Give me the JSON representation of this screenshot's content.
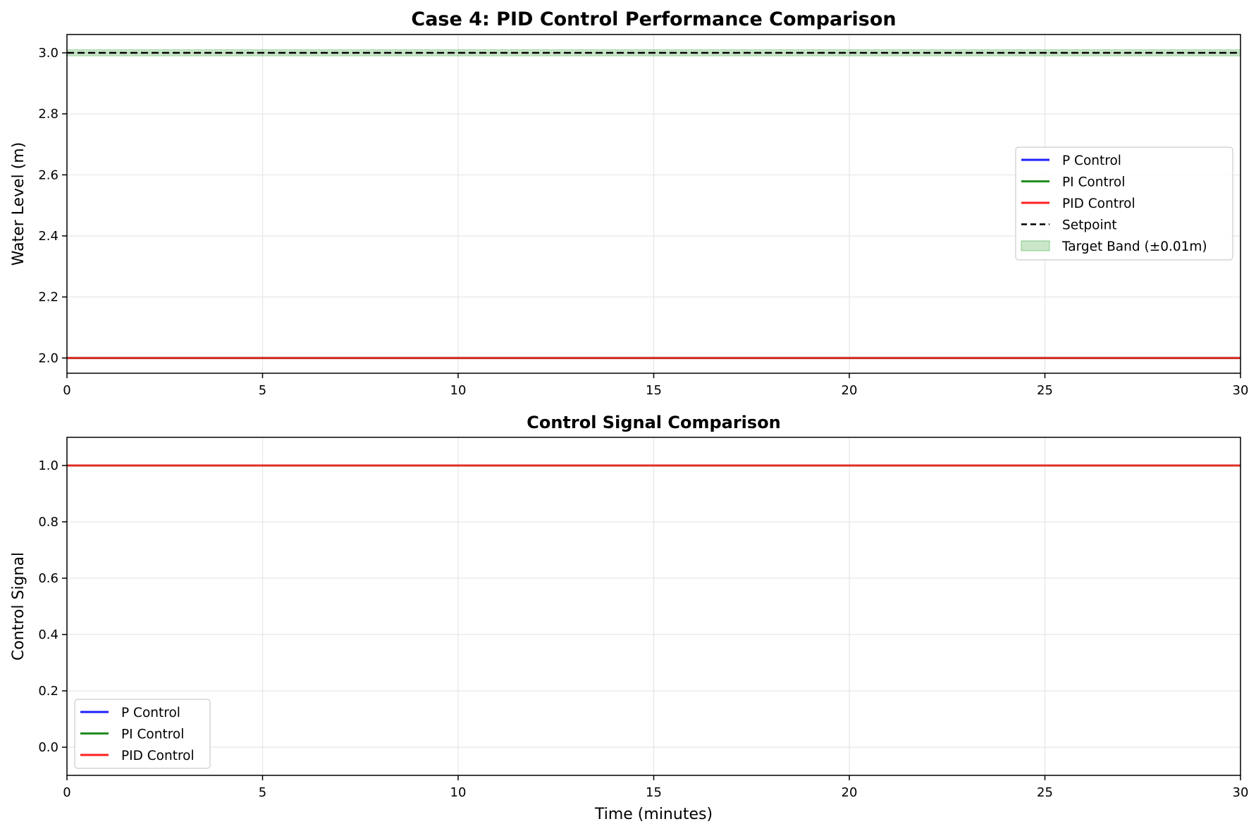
{
  "chart_data": [
    {
      "type": "line",
      "title": "Case 4: PID Control Performance Comparison",
      "xlabel": "",
      "ylabel": "Water Level (m)",
      "xlim": [
        0,
        30
      ],
      "ylim": [
        1.95,
        3.06
      ],
      "xticks": [
        "0",
        "5",
        "10",
        "15",
        "20",
        "25",
        "30"
      ],
      "yticks": [
        "2.0",
        "2.2",
        "2.4",
        "2.6",
        "2.8",
        "3.0"
      ],
      "grid": true,
      "legend_position": "center-right",
      "series": [
        {
          "name": "P Control",
          "color": "#1f1fff",
          "style": "solid",
          "x": [
            0,
            30
          ],
          "values": [
            2.0,
            2.0
          ]
        },
        {
          "name": "PI Control",
          "color": "#228b22",
          "style": "solid",
          "x": [
            0,
            30
          ],
          "values": [
            2.0,
            2.0
          ]
        },
        {
          "name": "PID Control",
          "color": "#ff2020",
          "style": "solid",
          "x": [
            0,
            30
          ],
          "values": [
            2.0,
            2.0
          ]
        },
        {
          "name": "Setpoint",
          "color": "#000000",
          "style": "dashed",
          "x": [
            0,
            30
          ],
          "values": [
            3.0,
            3.0
          ]
        }
      ],
      "bands": [
        {
          "name": "Target Band (±0.01m)",
          "color": "#2ca02c",
          "opacity": 0.25,
          "y": [
            2.99,
            3.01
          ]
        }
      ]
    },
    {
      "type": "line",
      "title": "Control Signal Comparison",
      "xlabel": "Time (minutes)",
      "ylabel": "Control Signal",
      "xlim": [
        0,
        30
      ],
      "ylim": [
        -0.1,
        1.1
      ],
      "xticks": [
        "0",
        "5",
        "10",
        "15",
        "20",
        "25",
        "30"
      ],
      "yticks": [
        "0.0",
        "0.2",
        "0.4",
        "0.6",
        "0.8",
        "1.0"
      ],
      "grid": true,
      "legend_position": "lower-left",
      "series": [
        {
          "name": "P Control",
          "color": "#1f1fff",
          "style": "solid",
          "x": [
            0,
            30
          ],
          "values": [
            1.0,
            1.0
          ]
        },
        {
          "name": "PI Control",
          "color": "#228b22",
          "style": "solid",
          "x": [
            0,
            30
          ],
          "values": [
            1.0,
            1.0
          ]
        },
        {
          "name": "PID Control",
          "color": "#ff2020",
          "style": "solid",
          "x": [
            0,
            30
          ],
          "values": [
            1.0,
            1.0
          ]
        }
      ],
      "bands": []
    }
  ]
}
